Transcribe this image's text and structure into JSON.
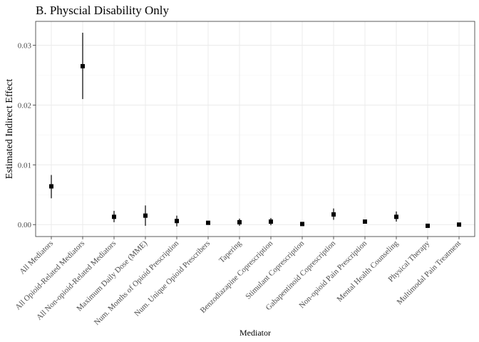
{
  "chart_data": {
    "type": "scatter",
    "title": "B. Physcial Disability Only",
    "xlabel": "Mediator",
    "ylabel": "Estimated Indirect Effect",
    "ylim": [
      -0.002,
      0.034
    ],
    "yticks": [
      0.0,
      0.01,
      0.02,
      0.03
    ],
    "ytick_labels": [
      "0.00",
      "0.01",
      "0.02",
      "0.03"
    ],
    "grid": true,
    "categories": [
      "All Mediators",
      "All Opioid-Related Mediators",
      "All Non-opioid-Related Mediators",
      "Maximum Daily Dose (MME)",
      "Num. Months of Opioid Prescription",
      "Num. Unique Opioid Prescribers",
      "Tapering",
      "Benzodiazapine Coprescription",
      "Stimulant Coprescription",
      "Gabapentinoid Coprescription",
      "Non-opioid Pain Prescription",
      "Mental Health Counseling",
      "Physical Therapy",
      "Multimodal Pain Treatment"
    ],
    "estimates": [
      0.0064,
      0.0265,
      0.0013,
      0.0015,
      0.0006,
      0.0003,
      0.0004,
      0.0005,
      0.0001,
      0.0017,
      0.0005,
      0.0013,
      -0.0002,
      0.0
    ],
    "lower": [
      0.0044,
      0.021,
      0.0004,
      -0.0002,
      -0.0003,
      0.0002,
      -0.0002,
      -0.0001,
      0.0,
      0.0008,
      0.0004,
      0.0005,
      -0.0003,
      -0.0001
    ],
    "upper": [
      0.0083,
      0.0321,
      0.0023,
      0.0032,
      0.0015,
      0.0004,
      0.001,
      0.0011,
      0.0002,
      0.0027,
      0.0006,
      0.0022,
      -0.0001,
      0.0001
    ]
  }
}
